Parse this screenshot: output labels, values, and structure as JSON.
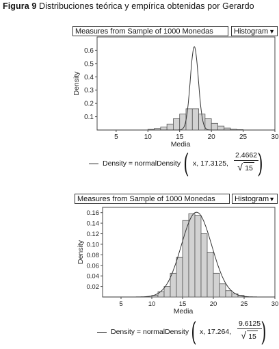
{
  "figure": {
    "label": "Figura 9",
    "text": "Distribuciones teórica y empírica obtenidas por Gerardo"
  },
  "panels": [
    {
      "caption": "Measures from Sample of 1000 Monedas",
      "dropdown_value": "Histogram",
      "formula": {
        "lhs": "Density = normalDensity",
        "args": "x, 17.3125,",
        "numerator": "2.4662",
        "denominator_radicand": "15"
      }
    },
    {
      "caption": "Measures from Sample of 1000 Monedas",
      "dropdown_value": "Histogram",
      "formula": {
        "lhs": "Density = normalDensity",
        "args": "x, 17.264,",
        "numerator": "9.6125",
        "denominator_radicand": "15"
      }
    }
  ],
  "chart_data": [
    {
      "type": "bar",
      "xlabel": "Media",
      "ylabel": "Density",
      "xlim": [
        2,
        30
      ],
      "ylim": [
        0,
        0.7
      ],
      "xticks": [
        5,
        10,
        15,
        20,
        25,
        30
      ],
      "yticks": [
        0.1,
        0.2,
        0.3,
        0.4,
        0.5,
        0.6
      ],
      "bin_width": 1,
      "bins": [
        {
          "x0": 10,
          "value": 0.005
        },
        {
          "x0": 11,
          "value": 0.012
        },
        {
          "x0": 12,
          "value": 0.022
        },
        {
          "x0": 13,
          "value": 0.045
        },
        {
          "x0": 14,
          "value": 0.085
        },
        {
          "x0": 15,
          "value": 0.12
        },
        {
          "x0": 16,
          "value": 0.16
        },
        {
          "x0": 17,
          "value": 0.16
        },
        {
          "x0": 18,
          "value": 0.12
        },
        {
          "x0": 19,
          "value": 0.085
        },
        {
          "x0": 20,
          "value": 0.05
        },
        {
          "x0": 21,
          "value": 0.03
        },
        {
          "x0": 22,
          "value": 0.015
        },
        {
          "x0": 23,
          "value": 0.006
        },
        {
          "x0": 24,
          "value": 0.003
        }
      ],
      "curve": {
        "mean": 17.3125,
        "sd": 0.6368
      }
    },
    {
      "type": "bar",
      "xlabel": "Media",
      "ylabel": "Density",
      "xlim": [
        2,
        30
      ],
      "ylim": [
        0,
        0.17
      ],
      "xticks": [
        5,
        10,
        15,
        20,
        25,
        30
      ],
      "yticks": [
        0.02,
        0.04,
        0.06,
        0.08,
        0.1,
        0.12,
        0.14,
        0.16
      ],
      "bin_width": 1,
      "bins": [
        {
          "x0": 10,
          "value": 0.003
        },
        {
          "x0": 11,
          "value": 0.01
        },
        {
          "x0": 12,
          "value": 0.02
        },
        {
          "x0": 13,
          "value": 0.045
        },
        {
          "x0": 14,
          "value": 0.075
        },
        {
          "x0": 15,
          "value": 0.145
        },
        {
          "x0": 16,
          "value": 0.158
        },
        {
          "x0": 17,
          "value": 0.155
        },
        {
          "x0": 18,
          "value": 0.12
        },
        {
          "x0": 19,
          "value": 0.085
        },
        {
          "x0": 20,
          "value": 0.045
        },
        {
          "x0": 21,
          "value": 0.025
        },
        {
          "x0": 22,
          "value": 0.012
        },
        {
          "x0": 23,
          "value": 0.006
        },
        {
          "x0": 24,
          "value": 0.003
        }
      ],
      "curve": {
        "mean": 17.264,
        "sd": 2.4819
      }
    }
  ]
}
